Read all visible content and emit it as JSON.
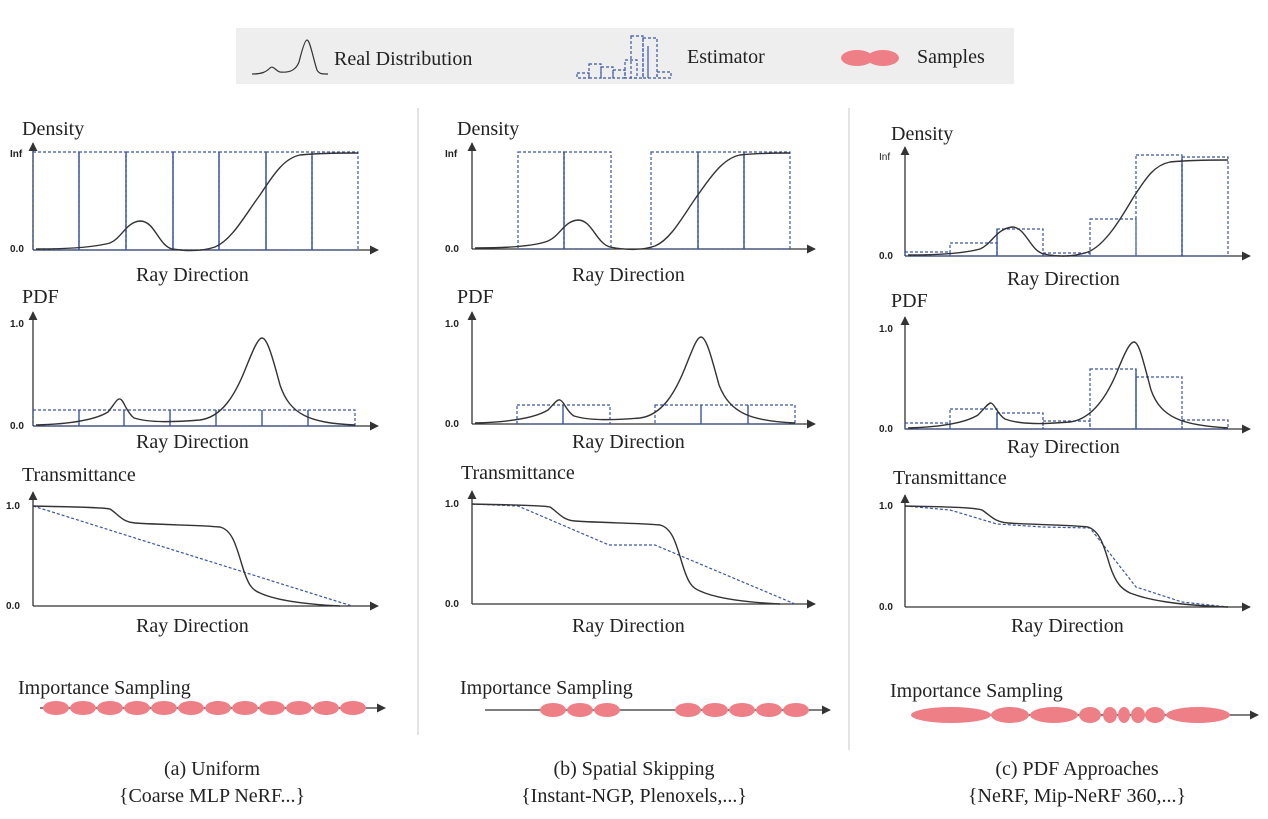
{
  "colors": {
    "curve": "#333333",
    "estimator": "#3a55a8",
    "sample": "#ef7f86",
    "legend_bg": "#eeeeee",
    "divider": "#d0d0d0"
  },
  "legend": {
    "real": "Real Distribution",
    "estimator": "Estimator",
    "samples": "Samples"
  },
  "panels": [
    {
      "density": {
        "title": "Density",
        "ytick_top": "Inf",
        "ytick_bottom": "0.0",
        "xlabel": "Ray Direction"
      },
      "pdf": {
        "title": "PDF",
        "ytick_top": "1.0",
        "ytick_bottom": "0.0",
        "xlabel": "Ray Direction"
      },
      "transmittance": {
        "title": "Transmittance",
        "ytick_top": "1.0",
        "ytick_bottom": "0.0",
        "xlabel": "Ray Direction"
      },
      "sampling_label": "Importance Sampling",
      "caption": "(a) Uniform",
      "subcaption": "{Coarse MLP NeRF...}"
    },
    {
      "density": {
        "title": "Density",
        "ytick_top": "Inf",
        "ytick_bottom": "0.0",
        "xlabel": "Ray Direction"
      },
      "pdf": {
        "title": "PDF",
        "ytick_top": "1.0",
        "ytick_bottom": "0.0",
        "xlabel": "Ray Direction"
      },
      "transmittance": {
        "title": "Transmittance",
        "ytick_top": "1.0",
        "ytick_bottom": "0.0",
        "xlabel": "Ray Direction"
      },
      "sampling_label": "Importance Sampling",
      "caption": "(b) Spatial Skipping",
      "subcaption": "{Instant-NGP, Plenoxels,...}"
    },
    {
      "density": {
        "title": "Density",
        "ytick_top": "Inf",
        "ytick_bottom": "0.0",
        "xlabel": "Ray Direction"
      },
      "pdf": {
        "title": "PDF",
        "ytick_top": "1.0",
        "ytick_bottom": "0.0",
        "xlabel": "Ray Direction"
      },
      "transmittance": {
        "title": "Transmittance",
        "ytick_top": "1.0",
        "ytick_bottom": "0.0",
        "xlabel": "Ray Direction"
      },
      "sampling_label": "Importance Sampling",
      "caption": "(c) PDF Approaches",
      "subcaption": "{NeRF, Mip-NeRF 360,...}"
    }
  ]
}
